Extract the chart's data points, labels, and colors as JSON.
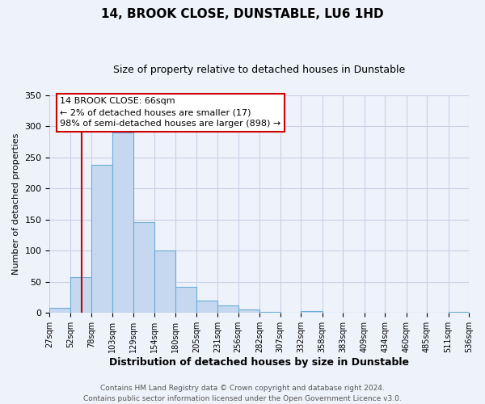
{
  "title": "14, BROOK CLOSE, DUNSTABLE, LU6 1HD",
  "subtitle": "Size of property relative to detached houses in Dunstable",
  "xlabel": "Distribution of detached houses by size in Dunstable",
  "ylabel": "Number of detached properties",
  "bin_edges": [
    27,
    52,
    78,
    103,
    129,
    154,
    180,
    205,
    231,
    256,
    282,
    307,
    332,
    358,
    383,
    409,
    434,
    460,
    485,
    511,
    536
  ],
  "bar_heights": [
    8,
    57,
    238,
    290,
    146,
    101,
    42,
    20,
    12,
    6,
    2,
    0,
    3,
    1,
    0,
    0,
    0,
    0,
    0,
    2
  ],
  "bar_color": "#c5d8f0",
  "bar_edgecolor": "#6baed6",
  "ylim": [
    0,
    350
  ],
  "yticks": [
    0,
    50,
    100,
    150,
    200,
    250,
    300,
    350
  ],
  "vline_x": 66,
  "vline_color": "#cc0000",
  "annotation_line1": "14 BROOK CLOSE: 66sqm",
  "annotation_line2": "← 2% of detached houses are smaller (17)",
  "annotation_line3": "98% of semi-detached houses are larger (898) →",
  "footer_line1": "Contains HM Land Registry data © Crown copyright and database right 2024.",
  "footer_line2": "Contains public sector information licensed under the Open Government Licence v3.0.",
  "background_color": "#eef2fa",
  "grid_color": "#c8d0e8",
  "title_fontsize": 11,
  "subtitle_fontsize": 9,
  "ylabel_fontsize": 8,
  "xlabel_fontsize": 9,
  "tick_fontsize": 7,
  "annotation_fontsize": 8,
  "footer_fontsize": 6.5
}
